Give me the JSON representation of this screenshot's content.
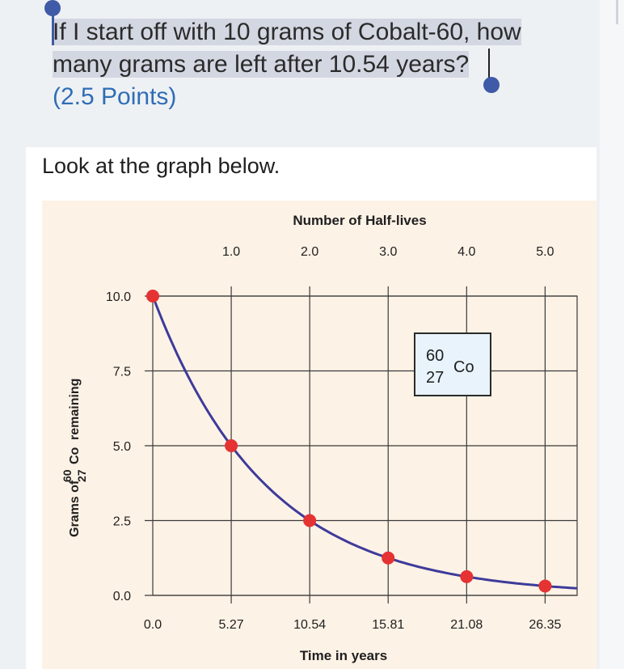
{
  "question": {
    "line1": "If I start off with 10 grams of Cobalt-60, how",
    "line2": "many grams are left after 10.54 years?",
    "points": "(2.5 Points)"
  },
  "image": {
    "caption": "Look at the graph below."
  },
  "chart_data": {
    "type": "line",
    "title": "",
    "top_axis_label": "Number of Half-lives",
    "top_ticks": [
      "1.0",
      "2.0",
      "3.0",
      "4.0",
      "5.0"
    ],
    "xlabel": "Time in years",
    "ylabel_prefix": "Grams of",
    "ylabel_mass": "60",
    "ylabel_atomic": "27",
    "ylabel_element": "Co",
    "ylabel_suffix": "remaining",
    "x_tick_labels": [
      "0.0",
      "5.27",
      "10.54",
      "15.81",
      "21.08",
      "26.35"
    ],
    "y_tick_labels": [
      "10.0",
      "7.5",
      "5.0",
      "2.5",
      "0.0"
    ],
    "half_life_years": 5.27,
    "xlim": [
      0,
      28.5
    ],
    "ylim": [
      0,
      10
    ],
    "points": {
      "x": [
        0,
        5.27,
        10.54,
        15.81,
        21.08,
        26.35
      ],
      "y": [
        10,
        5,
        2.5,
        1.25,
        0.625,
        0.3125
      ]
    },
    "legend_box": {
      "mass_number": "60",
      "atomic_number": "27",
      "symbol": "Co"
    },
    "colors": {
      "curve": "#3d3b9a",
      "points": "#e53232",
      "grid": "#3a3a3a",
      "background": "#fdf2e6",
      "legend_bg": "#e8f3fb"
    },
    "grid": true
  }
}
